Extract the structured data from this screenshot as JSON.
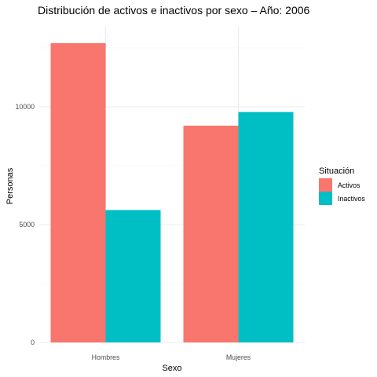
{
  "chart_data": {
    "type": "bar",
    "title": "Distribución de activos e inactivos por sexo – Año: 2006",
    "xlabel": "Sexo",
    "ylabel": "Personas",
    "categories": [
      "Hombres",
      "Mujeres"
    ],
    "series": [
      {
        "name": "Activos",
        "values": [
          12700,
          9200
        ],
        "color": "#F8766D"
      },
      {
        "name": "Inactivos",
        "values": [
          5620,
          9780
        ],
        "color": "#00BFC4"
      }
    ],
    "ylim": [
      0,
      13400
    ],
    "yticks": [
      0,
      5000,
      10000
    ],
    "ytick_labels": [
      "0",
      "5000",
      "10000"
    ],
    "grid": true,
    "legend": {
      "title": "Situación",
      "position": "right"
    }
  }
}
